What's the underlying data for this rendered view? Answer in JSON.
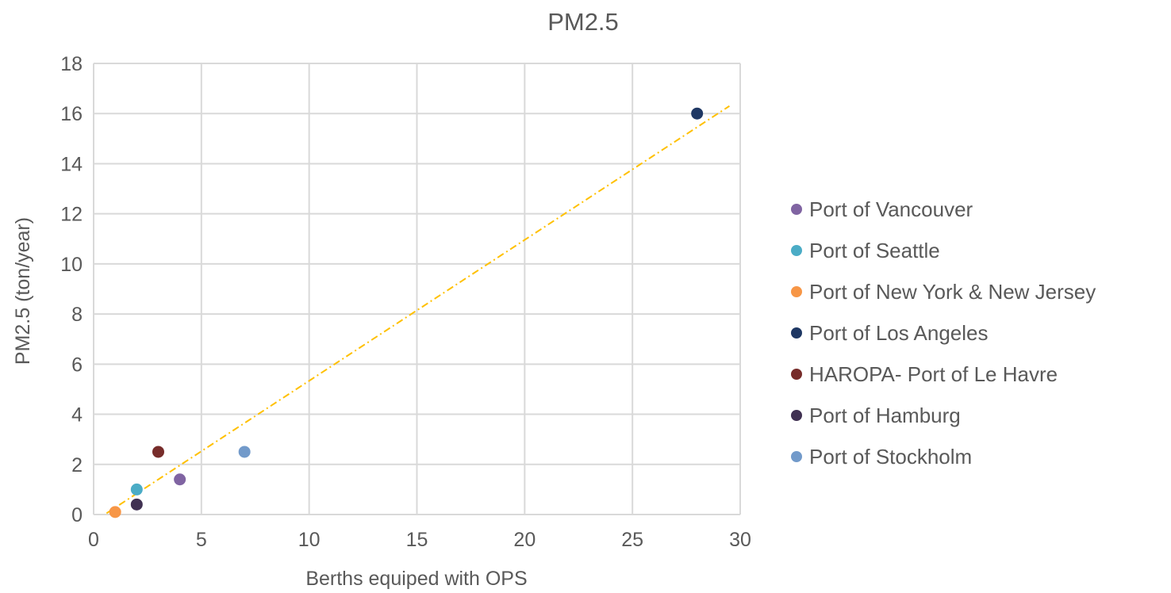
{
  "chart_data": {
    "type": "scatter",
    "title": "PM2.5",
    "xlabel": "Berths equiped with OPS",
    "ylabel": "PM2.5 (ton/year)",
    "xlim": [
      0,
      30
    ],
    "ylim": [
      0,
      18
    ],
    "xticks": [
      "0",
      "5",
      "10",
      "15",
      "20",
      "25",
      "30"
    ],
    "yticks": [
      "0",
      "2",
      "4",
      "6",
      "8",
      "10",
      "12",
      "14",
      "16",
      "18"
    ],
    "grid": true,
    "legend_position": "right",
    "series": [
      {
        "name": "Port of Vancouver",
        "color": "#8064a2",
        "points": [
          {
            "x": 4,
            "y": 1.4
          }
        ]
      },
      {
        "name": "Port of Seattle",
        "color": "#4bacc6",
        "points": [
          {
            "x": 2,
            "y": 1.0
          }
        ]
      },
      {
        "name": "Port of New York & New Jersey",
        "color": "#f79646",
        "points": [
          {
            "x": 1,
            "y": 0.1
          }
        ]
      },
      {
        "name": "Port of Los Angeles",
        "color": "#1f3864",
        "points": [
          {
            "x": 28,
            "y": 16
          }
        ]
      },
      {
        "name": "HAROPA- Port of Le Havre",
        "color": "#772c2a",
        "points": [
          {
            "x": 3,
            "y": 2.5
          }
        ]
      },
      {
        "name": "Port of Hamburg",
        "color": "#403152",
        "points": [
          {
            "x": 2,
            "y": 0.4
          }
        ]
      },
      {
        "name": "Port of Stockholm",
        "color": "#729aca",
        "points": [
          {
            "x": 7,
            "y": 2.5
          }
        ]
      }
    ],
    "trendline": {
      "type": "linear",
      "style": "dash-dot",
      "color": "#ffc000",
      "x_range": [
        0.6,
        29.5
      ],
      "y_range": [
        0.05,
        16.3
      ]
    }
  }
}
